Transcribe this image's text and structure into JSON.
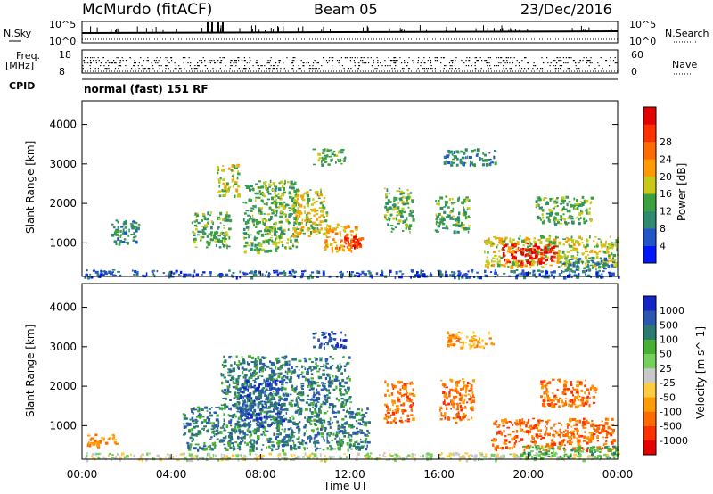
{
  "header": {
    "station": "McMurdo (fitACF)",
    "beam": "Beam 05",
    "date": "23/Dec/2016"
  },
  "sidepanel": {
    "nsky_label": "N.Sky",
    "nsearch_label": "N.Search",
    "freq_label_1": "Freq.",
    "freq_label_2": "[MHz]",
    "nave_label": "Nave",
    "cpid_label": "CPID",
    "cpid_text": "normal (fast) 151 RF",
    "nsky_ticks": [
      "10^5",
      "10^0"
    ],
    "nsearch_ticks": [
      "10^5",
      "10^0"
    ],
    "freq_ticks": [
      "18",
      "8"
    ],
    "nave_ticks": [
      "60",
      "0"
    ]
  },
  "chart_data": [
    {
      "type": "heatmap",
      "panel": "power",
      "ylabel": "Slant Range [km]",
      "yticks": [
        "1000",
        "2000",
        "3000",
        "4000"
      ],
      "ylim": [
        150,
        4600
      ],
      "xlim": [
        0,
        24
      ],
      "colorbar_label": "Power [dB]",
      "colorbar_ticks": [
        "4",
        "8",
        "12",
        "16",
        "20",
        "24",
        "28"
      ],
      "colorbar_colors": [
        "#0018ff",
        "#2255c8",
        "#2f8a72",
        "#3aa040",
        "#c8c818",
        "#ff9a00",
        "#ff6a00",
        "#ff3000",
        "#e60000"
      ],
      "regions": [
        {
          "t0": 0.1,
          "t1": 24,
          "r0": 150,
          "r1": 330,
          "level": 1
        },
        {
          "t0": 1.3,
          "t1": 2.6,
          "r0": 1000,
          "r1": 1600,
          "level": 2
        },
        {
          "t0": 4.9,
          "t1": 6.6,
          "r0": 900,
          "r1": 1800,
          "level": 3
        },
        {
          "t0": 6.0,
          "t1": 7.0,
          "r0": 2200,
          "r1": 3000,
          "level": 4
        },
        {
          "t0": 7.2,
          "t1": 9.6,
          "r0": 800,
          "r1": 2600,
          "level": 3
        },
        {
          "t0": 9.4,
          "t1": 11.0,
          "r0": 1200,
          "r1": 2400,
          "level": 4
        },
        {
          "t0": 10.8,
          "t1": 12.3,
          "r0": 800,
          "r1": 1500,
          "level": 5
        },
        {
          "t0": 11.5,
          "t1": 12.5,
          "r0": 900,
          "r1": 1200,
          "level": 7
        },
        {
          "t0": 10.3,
          "t1": 11.8,
          "r0": 3000,
          "r1": 3400,
          "level": 3
        },
        {
          "t0": 13.5,
          "t1": 14.8,
          "r0": 1300,
          "r1": 2400,
          "level": 3
        },
        {
          "t0": 15.8,
          "t1": 17.3,
          "r0": 1300,
          "r1": 2200,
          "level": 3
        },
        {
          "t0": 16.2,
          "t1": 18.5,
          "r0": 3000,
          "r1": 3400,
          "level": 2
        },
        {
          "t0": 18.0,
          "t1": 24.0,
          "r0": 400,
          "r1": 1200,
          "level": 4
        },
        {
          "t0": 18.8,
          "t1": 21.2,
          "r0": 500,
          "r1": 1000,
          "level": 8
        },
        {
          "t0": 20.3,
          "t1": 22.8,
          "r0": 1500,
          "r1": 2200,
          "level": 3
        },
        {
          "t0": 21.5,
          "t1": 23.8,
          "r0": 300,
          "r1": 650,
          "level": 2
        }
      ]
    },
    {
      "type": "heatmap",
      "panel": "velocity",
      "ylabel": "Slant Range [km]",
      "xlabel": "Time UT",
      "xticks": [
        "00:00",
        "04:00",
        "08:00",
        "12:00",
        "16:00",
        "20:00",
        "00:00"
      ],
      "yticks": [
        "1000",
        "2000",
        "3000",
        "4000"
      ],
      "ylim": [
        150,
        4600
      ],
      "xlim": [
        0,
        24
      ],
      "colorbar_label": "Velocity [m s^-1]",
      "colorbar_ticks": [
        "1000",
        "500",
        "100",
        "50",
        "25",
        "-25",
        "-50",
        "-100",
        "-500",
        "-1000"
      ],
      "colorbar_colors": [
        "#1424c8",
        "#2a58b0",
        "#2a7a70",
        "#48b030",
        "#74d05a",
        "#c8c8c8",
        "#ffcc40",
        "#ff9a00",
        "#ff6a00",
        "#ff3000",
        "#e60000"
      ],
      "regions": [
        {
          "t0": 0.1,
          "t1": 24,
          "r0": 150,
          "r1": 330,
          "level": 5
        },
        {
          "t0": 0.2,
          "t1": 1.5,
          "r0": 500,
          "r1": 800,
          "level": 7
        },
        {
          "t0": 4.5,
          "t1": 12.8,
          "r0": 400,
          "r1": 1500,
          "level": 2
        },
        {
          "t0": 6.2,
          "t1": 12.0,
          "r0": 1500,
          "r1": 2800,
          "level": 2
        },
        {
          "t0": 7.0,
          "t1": 9.0,
          "r0": 1000,
          "r1": 2200,
          "level": 1
        },
        {
          "t0": 10.3,
          "t1": 11.8,
          "r0": 3000,
          "r1": 3400,
          "level": 1
        },
        {
          "t0": 13.5,
          "t1": 14.8,
          "r0": 1100,
          "r1": 2200,
          "level": 8
        },
        {
          "t0": 16.0,
          "t1": 17.5,
          "r0": 1100,
          "r1": 2200,
          "level": 8
        },
        {
          "t0": 16.3,
          "t1": 18.5,
          "r0": 3000,
          "r1": 3400,
          "level": 7
        },
        {
          "t0": 18.3,
          "t1": 23.8,
          "r0": 400,
          "r1": 1200,
          "level": 8
        },
        {
          "t0": 20.5,
          "t1": 23.0,
          "r0": 1500,
          "r1": 2200,
          "level": 8
        },
        {
          "t0": 19.5,
          "t1": 24.0,
          "r0": 200,
          "r1": 500,
          "level": 3
        }
      ]
    }
  ]
}
